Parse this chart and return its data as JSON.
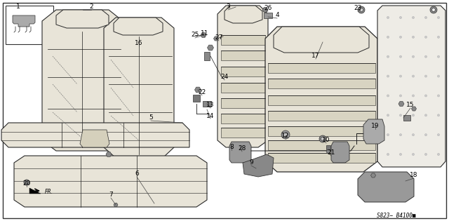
{
  "bg_color": "#ffffff",
  "part_code": "S823− B4100■",
  "line_color": "#1a1a1a",
  "seat_color": "#e8e4d8",
  "seat_edge": "#2a2a2a",
  "label_fontsize": 6.5,
  "parts": [
    [
      "1",
      38,
      18
    ],
    [
      "2",
      130,
      12
    ],
    [
      "3",
      340,
      12
    ],
    [
      "4",
      393,
      22
    ],
    [
      "5",
      213,
      168
    ],
    [
      "6",
      192,
      246
    ],
    [
      "7",
      154,
      276
    ],
    [
      "8",
      342,
      208
    ],
    [
      "9",
      358,
      228
    ],
    [
      "10",
      461,
      198
    ],
    [
      "11",
      290,
      52
    ],
    [
      "12",
      405,
      192
    ],
    [
      "13",
      298,
      148
    ],
    [
      "14",
      298,
      162
    ],
    [
      "15",
      583,
      148
    ],
    [
      "16",
      196,
      62
    ],
    [
      "17",
      446,
      80
    ],
    [
      "18",
      586,
      248
    ],
    [
      "19",
      532,
      178
    ],
    [
      "20",
      38,
      260
    ],
    [
      "21",
      468,
      218
    ],
    [
      "22",
      286,
      130
    ],
    [
      "23",
      515,
      12
    ],
    [
      "24",
      318,
      108
    ],
    [
      "25",
      278,
      48
    ],
    [
      "26",
      378,
      12
    ],
    [
      "27",
      310,
      52
    ],
    [
      "28",
      342,
      210
    ]
  ],
  "border": [
    4,
    4,
    636,
    311
  ]
}
